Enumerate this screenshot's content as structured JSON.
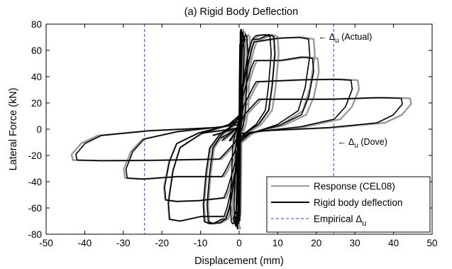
{
  "chart_data": {
    "type": "line",
    "title": "(a) Rigid Body Deflection",
    "xlabel": "Displacement (mm)",
    "ylabel": "Lateral Force (kN)",
    "xlim": [
      -50,
      50
    ],
    "ylim": [
      -80,
      80
    ],
    "xticks": [
      -50,
      -40,
      -30,
      -20,
      -10,
      0,
      10,
      20,
      30,
      40,
      50
    ],
    "yticks": [
      -80,
      -60,
      -40,
      -20,
      0,
      20,
      40,
      60,
      80
    ],
    "grid": false,
    "legend_position": "bottom-right",
    "legend": [
      {
        "label": "Response (CEL08)",
        "color": "#9a9a9a",
        "style": "solid"
      },
      {
        "label": "Rigid body deflection",
        "color": "#000000",
        "style": "solid"
      },
      {
        "label": "Empirical Δ",
        "subscript": "u",
        "color": "#3b3bd6",
        "style": "dashed"
      }
    ],
    "vertical_lines": [
      {
        "name": "Empirical Δu",
        "x": [
          -24.5,
          24.5
        ]
      }
    ],
    "annotations": [
      {
        "prefix": "← Δ",
        "subscript": "u",
        "suffix": " (Actual)",
        "x": 20.5,
        "y": 68
      },
      {
        "prefix": "← Δ",
        "subscript": "u",
        "suffix": " (Dove)",
        "x": 25.5,
        "y": -12
      }
    ],
    "hysteresis_cycles": [
      {
        "disp": 0.5,
        "force": 76
      },
      {
        "disp": 1.0,
        "force": 74
      },
      {
        "disp": 2.0,
        "force": 72
      },
      {
        "disp": 8.0,
        "force": 72
      },
      {
        "disp": 9.0,
        "force": 72
      },
      {
        "disp": 18.0,
        "force": 70
      },
      {
        "disp": 19.0,
        "force": 55
      },
      {
        "disp": 29.0,
        "force": 38
      },
      {
        "disp": 42.0,
        "force": 24
      }
    ],
    "series": [
      {
        "name": "Response (CEL08)",
        "color": "#9a9a9a",
        "peak_disp_max": 43,
        "peak_disp_min": -41
      },
      {
        "name": "Rigid body deflection",
        "color": "#000000",
        "peak_disp_max": 41,
        "peak_disp_min": -40
      }
    ]
  }
}
